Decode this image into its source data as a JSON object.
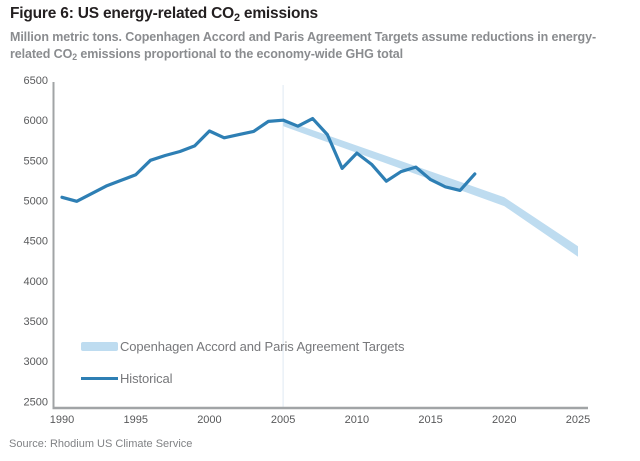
{
  "figure": {
    "title_pre": "Figure 6: US energy-related CO",
    "title_sub": "2",
    "title_post": " emissions",
    "subtitle_pre": "Million metric tons. Copenhagen Accord and Paris Agreement Targets assume reductions in energy-related CO",
    "subtitle_sub": "2",
    "subtitle_post": " emissions proportional to the economy-wide GHG total",
    "source": "Source: Rhodium US Climate Service"
  },
  "legend": {
    "items": [
      {
        "label": "Copenhagen Accord and Paris Agreement Targets",
        "swatch": "target_band"
      },
      {
        "label": "Historical",
        "swatch": "historical"
      }
    ]
  },
  "colors": {
    "historical": "#2e7fb4",
    "target_band": "#bedcf0",
    "axis": "#a1a4a6",
    "tick_text": "#58595b",
    "title_text": "#231f20",
    "muted_text": "#808285",
    "divider_2005": "#eaf1f7"
  },
  "chart_data": {
    "type": "line",
    "title": "Figure 6: US energy-related CO2 emissions",
    "subtitle": "Million metric tons. Copenhagen Accord and Paris Agreement Targets assume reductions in energy-related CO2 emissions proportional to the economy-wide GHG total",
    "source": "Rhodium US Climate Service",
    "ylabel": "Million metric tons",
    "xlim": [
      1990,
      2025
    ],
    "ylim": [
      2500,
      6500
    ],
    "ytick_step": 500,
    "yticks": [
      6500,
      6000,
      5500,
      5000,
      4500,
      4000,
      3500,
      3000,
      2500
    ],
    "xticks": [
      1990,
      1995,
      2000,
      2005,
      2010,
      2015,
      2020,
      2025
    ],
    "grid": false,
    "legend_position": "inside-lower-left",
    "annotations": {
      "vertical_guide_x": 2005
    },
    "series": [
      {
        "name": "Historical",
        "type": "line",
        "x": [
          1990,
          1991,
          1992,
          1993,
          1994,
          1995,
          1996,
          1997,
          1998,
          1999,
          2000,
          2001,
          2002,
          2003,
          2004,
          2005,
          2006,
          2007,
          2008,
          2009,
          2010,
          2011,
          2012,
          2013,
          2014,
          2015,
          2016,
          2017,
          2018
        ],
        "values": [
          5040,
          4990,
          5085,
          5180,
          5250,
          5320,
          5500,
          5560,
          5610,
          5680,
          5865,
          5780,
          5820,
          5860,
          5985,
          6000,
          5925,
          6020,
          5820,
          5400,
          5590,
          5450,
          5240,
          5360,
          5415,
          5260,
          5170,
          5125,
          5330
        ]
      },
      {
        "name": "Copenhagen Accord and Paris Agreement Targets",
        "type": "band",
        "x": [
          2005,
          2020,
          2025
        ],
        "top": [
          6005,
          5040,
          4430
        ],
        "bottom": [
          5925,
          4930,
          4300
        ]
      }
    ]
  }
}
